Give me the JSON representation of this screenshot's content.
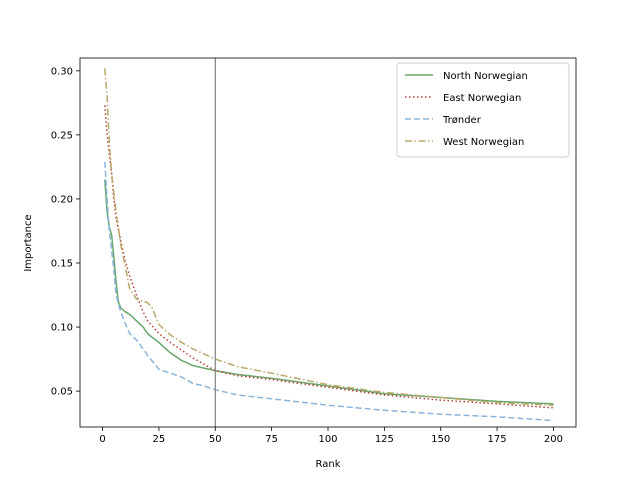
{
  "chart_data": {
    "type": "line",
    "title": "",
    "xlabel": "Rank",
    "ylabel": "Importance",
    "xlim": [
      -10,
      210
    ],
    "ylim": [
      0.022,
      0.31
    ],
    "x_ticks": [
      0,
      25,
      50,
      75,
      100,
      125,
      150,
      175,
      200
    ],
    "y_ticks": [
      0.05,
      0.1,
      0.15,
      0.2,
      0.25,
      0.3
    ],
    "y_tick_labels": [
      "0.05",
      "0.10",
      "0.15",
      "0.20",
      "0.25",
      "0.30"
    ],
    "vline_x": 50,
    "vline_color": "#808080",
    "legend_position": "top-right",
    "grid": false,
    "series": [
      {
        "name": "North Norwegian",
        "color": "#6aa56a",
        "dash": "",
        "points": [
          [
            1,
            0.215
          ],
          [
            2,
            0.19
          ],
          [
            3,
            0.178
          ],
          [
            4,
            0.172
          ],
          [
            5,
            0.155
          ],
          [
            6,
            0.135
          ],
          [
            7,
            0.12
          ],
          [
            8,
            0.115
          ],
          [
            10,
            0.112
          ],
          [
            12,
            0.11
          ],
          [
            15,
            0.105
          ],
          [
            18,
            0.1
          ],
          [
            20,
            0.095
          ],
          [
            22,
            0.092
          ],
          [
            25,
            0.088
          ],
          [
            28,
            0.083
          ],
          [
            30,
            0.08
          ],
          [
            35,
            0.074
          ],
          [
            40,
            0.07
          ],
          [
            45,
            0.068
          ],
          [
            50,
            0.066
          ],
          [
            60,
            0.063
          ],
          [
            75,
            0.06
          ],
          [
            100,
            0.054
          ],
          [
            125,
            0.048
          ],
          [
            150,
            0.045
          ],
          [
            175,
            0.042
          ],
          [
            200,
            0.04
          ]
        ]
      },
      {
        "name": "East Norwegian",
        "color": "#b5413a",
        "dash": "1.5,2.5",
        "points": [
          [
            1,
            0.273
          ],
          [
            2,
            0.25
          ],
          [
            3,
            0.235
          ],
          [
            4,
            0.22
          ],
          [
            5,
            0.2
          ],
          [
            6,
            0.185
          ],
          [
            8,
            0.168
          ],
          [
            10,
            0.152
          ],
          [
            12,
            0.14
          ],
          [
            15,
            0.125
          ],
          [
            18,
            0.112
          ],
          [
            20,
            0.105
          ],
          [
            25,
            0.095
          ],
          [
            30,
            0.088
          ],
          [
            35,
            0.082
          ],
          [
            40,
            0.076
          ],
          [
            45,
            0.071
          ],
          [
            50,
            0.066
          ],
          [
            60,
            0.062
          ],
          [
            75,
            0.059
          ],
          [
            100,
            0.053
          ],
          [
            125,
            0.047
          ],
          [
            150,
            0.043
          ],
          [
            175,
            0.04
          ],
          [
            200,
            0.037
          ]
        ]
      },
      {
        "name": "Trønder",
        "color": "#8ab4db",
        "dash": "6,3",
        "points": [
          [
            1,
            0.229
          ],
          [
            2,
            0.2
          ],
          [
            3,
            0.175
          ],
          [
            4,
            0.16
          ],
          [
            5,
            0.145
          ],
          [
            6,
            0.125
          ],
          [
            8,
            0.112
          ],
          [
            10,
            0.103
          ],
          [
            12,
            0.095
          ],
          [
            15,
            0.09
          ],
          [
            18,
            0.083
          ],
          [
            20,
            0.078
          ],
          [
            25,
            0.067
          ],
          [
            30,
            0.064
          ],
          [
            35,
            0.061
          ],
          [
            40,
            0.056
          ],
          [
            45,
            0.054
          ],
          [
            50,
            0.051
          ],
          [
            55,
            0.049
          ],
          [
            60,
            0.047
          ],
          [
            75,
            0.044
          ],
          [
            100,
            0.039
          ],
          [
            125,
            0.035
          ],
          [
            150,
            0.032
          ],
          [
            175,
            0.03
          ],
          [
            200,
            0.027
          ]
        ]
      },
      {
        "name": "West Norwegian",
        "color": "#b9a86a",
        "dash": "7,2.5,1.5,2.5",
        "points": [
          [
            1,
            0.302
          ],
          [
            2,
            0.28
          ],
          [
            3,
            0.245
          ],
          [
            4,
            0.22
          ],
          [
            5,
            0.205
          ],
          [
            6,
            0.19
          ],
          [
            8,
            0.165
          ],
          [
            10,
            0.148
          ],
          [
            12,
            0.13
          ],
          [
            15,
            0.122
          ],
          [
            18,
            0.12
          ],
          [
            20,
            0.119
          ],
          [
            22,
            0.115
          ],
          [
            25,
            0.102
          ],
          [
            30,
            0.094
          ],
          [
            35,
            0.088
          ],
          [
            40,
            0.083
          ],
          [
            45,
            0.079
          ],
          [
            50,
            0.075
          ],
          [
            55,
            0.072
          ],
          [
            60,
            0.069
          ],
          [
            75,
            0.064
          ],
          [
            100,
            0.055
          ],
          [
            125,
            0.049
          ],
          [
            150,
            0.045
          ],
          [
            175,
            0.041
          ],
          [
            200,
            0.039
          ]
        ]
      }
    ]
  }
}
